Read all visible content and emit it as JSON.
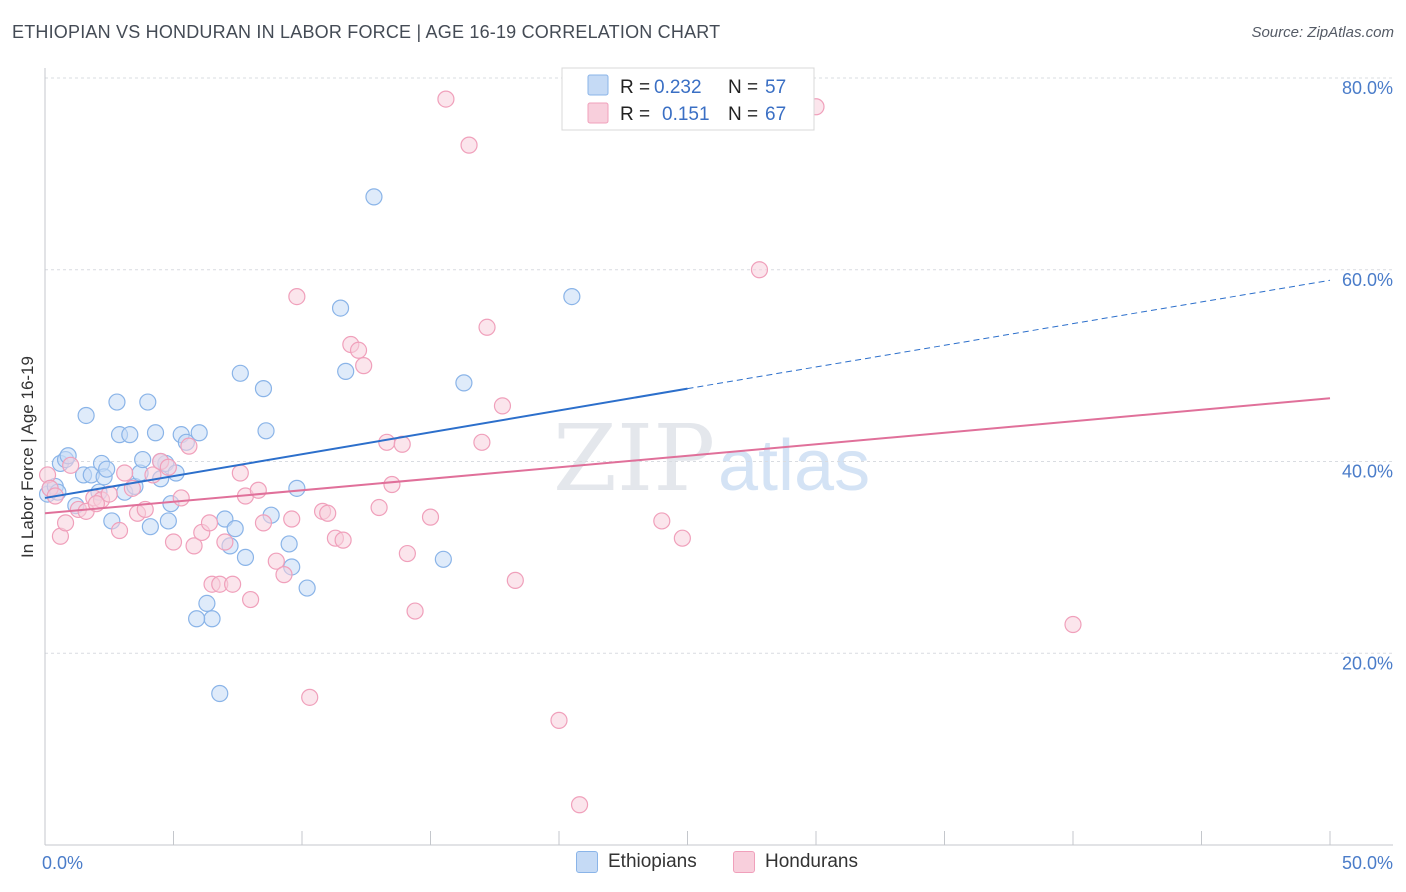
{
  "chart_data": {
    "type": "scatter",
    "title": "ETHIOPIAN VS HONDURAN IN LABOR FORCE | AGE 16-19 CORRELATION CHART",
    "source": "Source: ZipAtlas.com",
    "ylabel": "In Labor Force | Age 16-19",
    "xlim": [
      0,
      50
    ],
    "ylim": [
      0,
      80
    ],
    "x_tick_labels": {
      "min": "0.0%",
      "max": "50.0%"
    },
    "y_ticks": [
      {
        "value": 20,
        "label": "20.0%"
      },
      {
        "value": 40,
        "label": "40.0%"
      },
      {
        "value": 60,
        "label": "60.0%"
      },
      {
        "value": 80,
        "label": "80.0%"
      }
    ],
    "watermark": {
      "zip": "ZIP",
      "atlas": "atlas"
    },
    "legend": [
      {
        "r_label": "R =",
        "r_value": "0.232",
        "n_label": "N =",
        "n_value": "57"
      },
      {
        "r_label": "R =",
        "r_value": "0.151",
        "n_label": "N =",
        "n_value": "67"
      }
    ],
    "series": [
      {
        "name": "Ethiopians",
        "color": "#8ab4e8",
        "fill": "#c5daf5",
        "line_color": "#2c6fcb",
        "trend": {
          "x0": 0,
          "y0": 36.2,
          "x1": 25,
          "y1": 47.6,
          "dashed_to_x": 50,
          "dashed_to_y": 58.9
        },
        "points": [
          [
            0.1,
            36.6
          ],
          [
            0.2,
            37.2
          ],
          [
            0.4,
            37.4
          ],
          [
            0.5,
            36.8
          ],
          [
            0.6,
            39.8
          ],
          [
            0.8,
            40.2
          ],
          [
            0.9,
            40.6
          ],
          [
            1.2,
            35.4
          ],
          [
            1.5,
            38.6
          ],
          [
            1.6,
            44.8
          ],
          [
            1.8,
            38.6
          ],
          [
            2.1,
            36.8
          ],
          [
            2.2,
            39.8
          ],
          [
            2.3,
            38.4
          ],
          [
            2.4,
            39.2
          ],
          [
            2.6,
            33.8
          ],
          [
            2.8,
            46.2
          ],
          [
            2.9,
            42.8
          ],
          [
            3.1,
            36.8
          ],
          [
            3.3,
            42.8
          ],
          [
            3.5,
            37.4
          ],
          [
            3.7,
            38.8
          ],
          [
            3.8,
            40.2
          ],
          [
            4.0,
            46.2
          ],
          [
            4.1,
            33.2
          ],
          [
            4.3,
            43.0
          ],
          [
            4.5,
            38.2
          ],
          [
            4.7,
            39.8
          ],
          [
            4.8,
            33.8
          ],
          [
            4.9,
            35.6
          ],
          [
            5.1,
            38.8
          ],
          [
            5.3,
            42.8
          ],
          [
            5.5,
            42.0
          ],
          [
            6.0,
            43.0
          ],
          [
            6.3,
            25.2
          ],
          [
            6.5,
            23.6
          ],
          [
            5.9,
            23.6
          ],
          [
            6.8,
            15.8
          ],
          [
            7.0,
            34.0
          ],
          [
            7.2,
            31.2
          ],
          [
            7.4,
            33.0
          ],
          [
            7.6,
            49.2
          ],
          [
            7.8,
            30.0
          ],
          [
            8.5,
            47.6
          ],
          [
            8.6,
            43.2
          ],
          [
            8.8,
            34.4
          ],
          [
            9.5,
            31.4
          ],
          [
            9.6,
            29.0
          ],
          [
            9.8,
            37.2
          ],
          [
            10.2,
            26.8
          ],
          [
            11.5,
            56.0
          ],
          [
            11.7,
            49.4
          ],
          [
            12.8,
            67.6
          ],
          [
            15.5,
            29.8
          ],
          [
            16.3,
            48.2
          ],
          [
            20.5,
            57.2
          ],
          [
            4.5,
            40.0
          ]
        ]
      },
      {
        "name": "Hondurans",
        "color": "#f0a0bb",
        "fill": "#f8cfdc",
        "line_color": "#e0709a",
        "trend": {
          "x0": 0,
          "y0": 34.6,
          "x1": 50,
          "y1": 46.6
        },
        "points": [
          [
            0.1,
            38.6
          ],
          [
            0.2,
            37.2
          ],
          [
            0.4,
            36.4
          ],
          [
            0.6,
            32.2
          ],
          [
            0.8,
            33.6
          ],
          [
            1.0,
            39.6
          ],
          [
            1.3,
            35.0
          ],
          [
            1.6,
            34.8
          ],
          [
            1.9,
            36.2
          ],
          [
            2.2,
            36.0
          ],
          [
            2.5,
            36.6
          ],
          [
            2.9,
            32.8
          ],
          [
            3.1,
            38.8
          ],
          [
            3.4,
            37.2
          ],
          [
            3.6,
            34.6
          ],
          [
            3.9,
            35.0
          ],
          [
            4.2,
            38.6
          ],
          [
            4.5,
            40.0
          ],
          [
            4.8,
            39.4
          ],
          [
            5.0,
            31.6
          ],
          [
            5.3,
            36.2
          ],
          [
            5.6,
            41.6
          ],
          [
            5.8,
            31.2
          ],
          [
            6.1,
            32.6
          ],
          [
            6.4,
            33.6
          ],
          [
            6.5,
            27.2
          ],
          [
            6.8,
            27.2
          ],
          [
            7.0,
            31.6
          ],
          [
            7.3,
            27.2
          ],
          [
            7.6,
            38.8
          ],
          [
            7.8,
            36.4
          ],
          [
            8.0,
            25.6
          ],
          [
            8.3,
            37.0
          ],
          [
            8.5,
            33.6
          ],
          [
            9.0,
            29.6
          ],
          [
            9.3,
            28.2
          ],
          [
            9.6,
            34.0
          ],
          [
            9.8,
            57.2
          ],
          [
            10.3,
            15.4
          ],
          [
            10.8,
            34.8
          ],
          [
            11.0,
            34.6
          ],
          [
            11.3,
            32.0
          ],
          [
            11.6,
            31.8
          ],
          [
            11.9,
            52.2
          ],
          [
            12.2,
            51.6
          ],
          [
            12.4,
            50.0
          ],
          [
            13.0,
            35.2
          ],
          [
            13.3,
            42.0
          ],
          [
            13.5,
            37.6
          ],
          [
            13.9,
            41.8
          ],
          [
            14.1,
            30.4
          ],
          [
            14.4,
            24.4
          ],
          [
            15.0,
            34.2
          ],
          [
            15.6,
            77.8
          ],
          [
            16.5,
            73.0
          ],
          [
            17.0,
            42.0
          ],
          [
            17.2,
            54.0
          ],
          [
            17.8,
            45.8
          ],
          [
            18.3,
            27.6
          ],
          [
            20.0,
            13.0
          ],
          [
            20.8,
            4.2
          ],
          [
            24.0,
            33.8
          ],
          [
            24.8,
            32.0
          ],
          [
            27.8,
            60.0
          ],
          [
            30.0,
            77.0
          ],
          [
            40.0,
            23.0
          ],
          [
            2.0,
            35.6
          ]
        ]
      }
    ]
  }
}
